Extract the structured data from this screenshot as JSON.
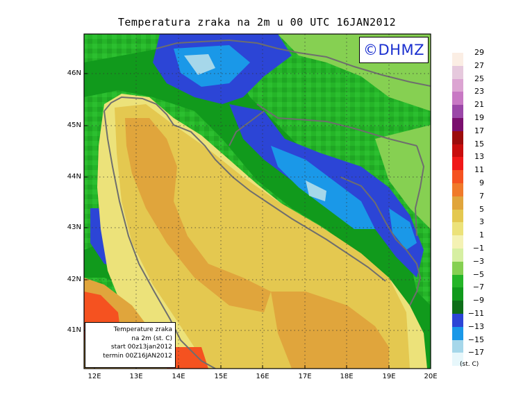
{
  "title": "Temperatura zraka na 2m u 00 UTC 16JAN2012",
  "logo": "©DHMZ",
  "info_box": {
    "line1": "Temperature zraka",
    "line2": "na 2m (st. C)",
    "line3": "start 00z13jan2012",
    "line4": "termin 00Z16JAN2012"
  },
  "axes": {
    "lat_labels": [
      "46N",
      "45N",
      "44N",
      "43N",
      "42N",
      "41N"
    ],
    "lon_labels": [
      "12E",
      "13E",
      "14E",
      "15E",
      "16E",
      "17E",
      "18E",
      "19E",
      "20E"
    ]
  },
  "legend": {
    "units": "(st. C)",
    "levels": [
      "29",
      "27",
      "25",
      "23",
      "21",
      "19",
      "17",
      "15",
      "13",
      "11",
      "9",
      "7",
      "5",
      "3",
      "1",
      "−1",
      "−3",
      "−5",
      "−7",
      "−9",
      "−11",
      "−13",
      "−15",
      "−17"
    ],
    "colors": [
      "#fbeee4",
      "#e6c9dd",
      "#dca4d2",
      "#c878c4",
      "#9b47a8",
      "#7a0f6e",
      "#9c0c0c",
      "#c80d0d",
      "#f01818",
      "#f55220",
      "#f07a2a",
      "#e0a53c",
      "#e4c850",
      "#ece27a",
      "#f4f2b4",
      "#d6efa2",
      "#86d052",
      "#25b528",
      "#119a1c",
      "#0e6e19",
      "#2c45d6",
      "#1a98e8",
      "#a6d7ea",
      "#e7f7fb"
    ]
  },
  "colors": {
    "sea_warm": "#e0a53c",
    "sea_mild": "#e4c850",
    "coast_pale": "#ece27a",
    "land_green": "#25b528",
    "land_dark": "#119a1c",
    "blue": "#2c45d6",
    "cyan": "#1a98e8",
    "orange_red": "#f55220",
    "border": "#6e6e6e"
  }
}
